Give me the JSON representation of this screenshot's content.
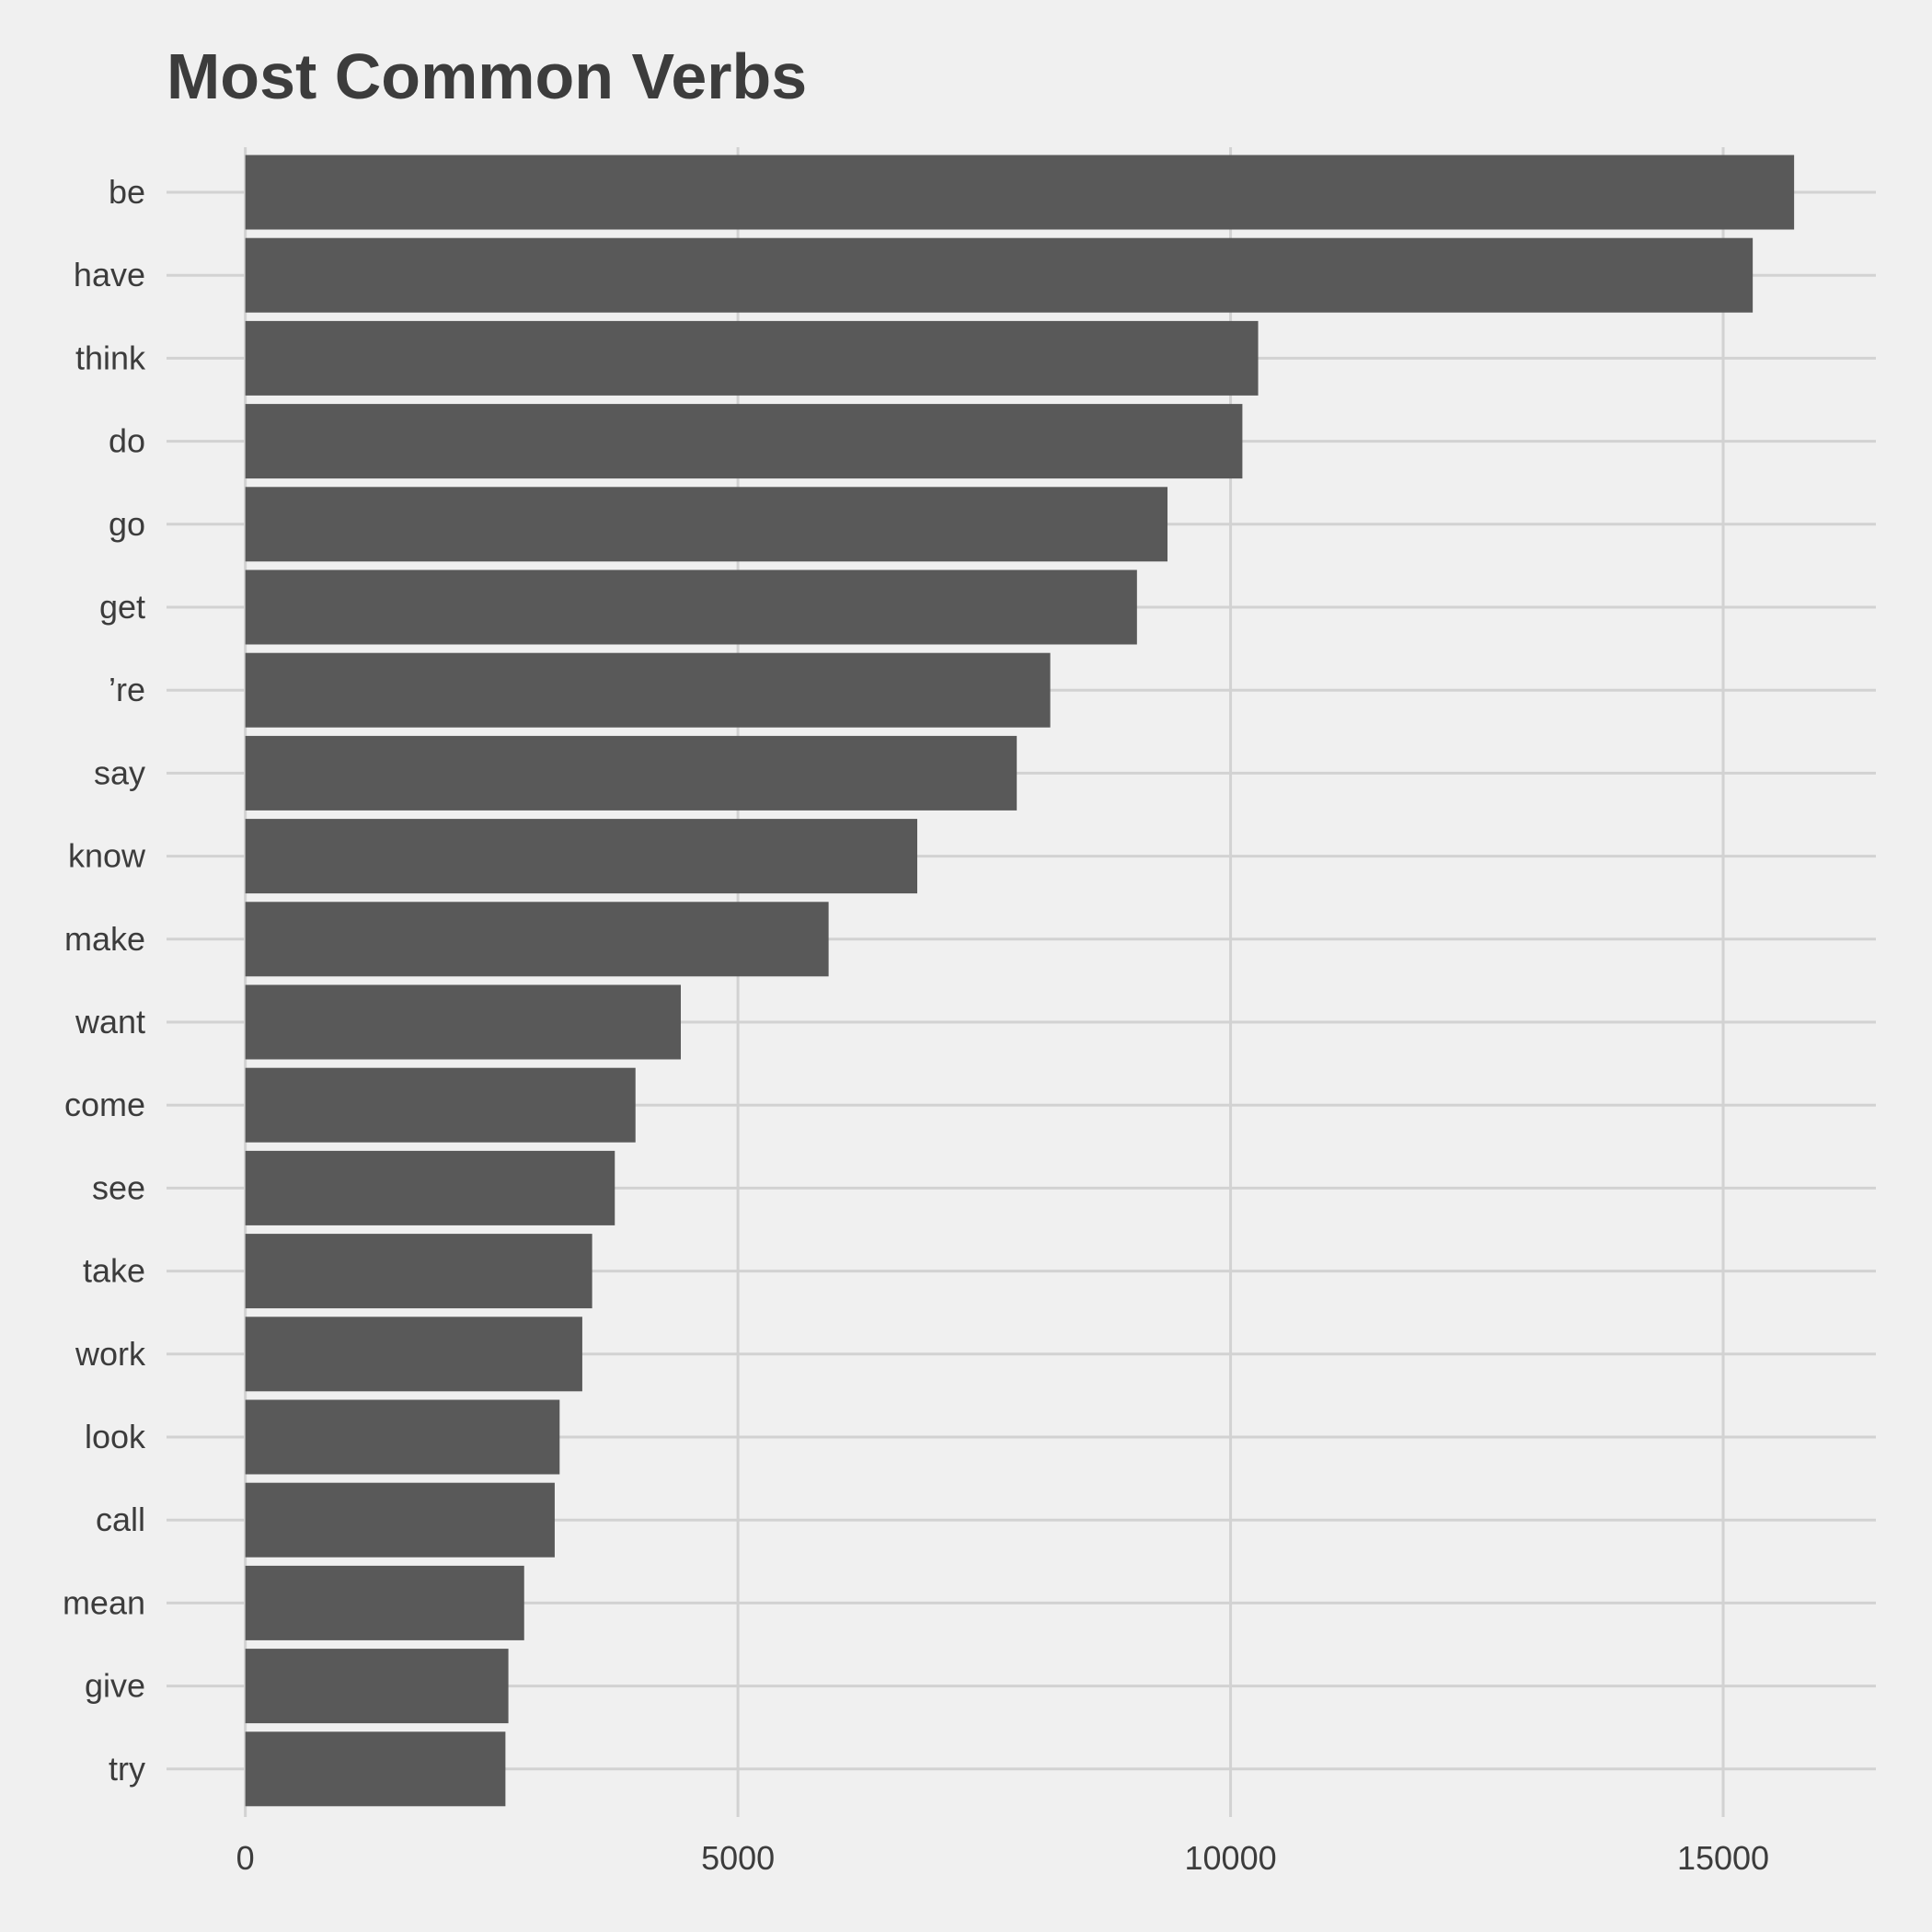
{
  "chart_data": {
    "type": "bar",
    "orientation": "horizontal",
    "title": "Most Common Verbs",
    "xlabel": "",
    "ylabel": "",
    "categories": [
      "be",
      "have",
      "think",
      "do",
      "go",
      "get",
      "’re",
      "say",
      "know",
      "make",
      "want",
      "come",
      "see",
      "take",
      "work",
      "look",
      "call",
      "mean",
      "give",
      "try"
    ],
    "values": [
      15720,
      15300,
      10280,
      10120,
      9360,
      9050,
      8170,
      7830,
      6820,
      5920,
      4420,
      3960,
      3750,
      3520,
      3420,
      3190,
      3140,
      2830,
      2670,
      2640
    ],
    "xlim": [
      -800,
      16550
    ],
    "xticks": [
      0,
      5000,
      10000,
      15000
    ],
    "xtick_labels": [
      "0",
      "5000",
      "10000",
      "15000"
    ],
    "grid": true,
    "bar_color": "#595959",
    "grid_color": "#d2d2d2",
    "background_color": "#f0f0f0",
    "text_color": "#3c3c3c"
  }
}
